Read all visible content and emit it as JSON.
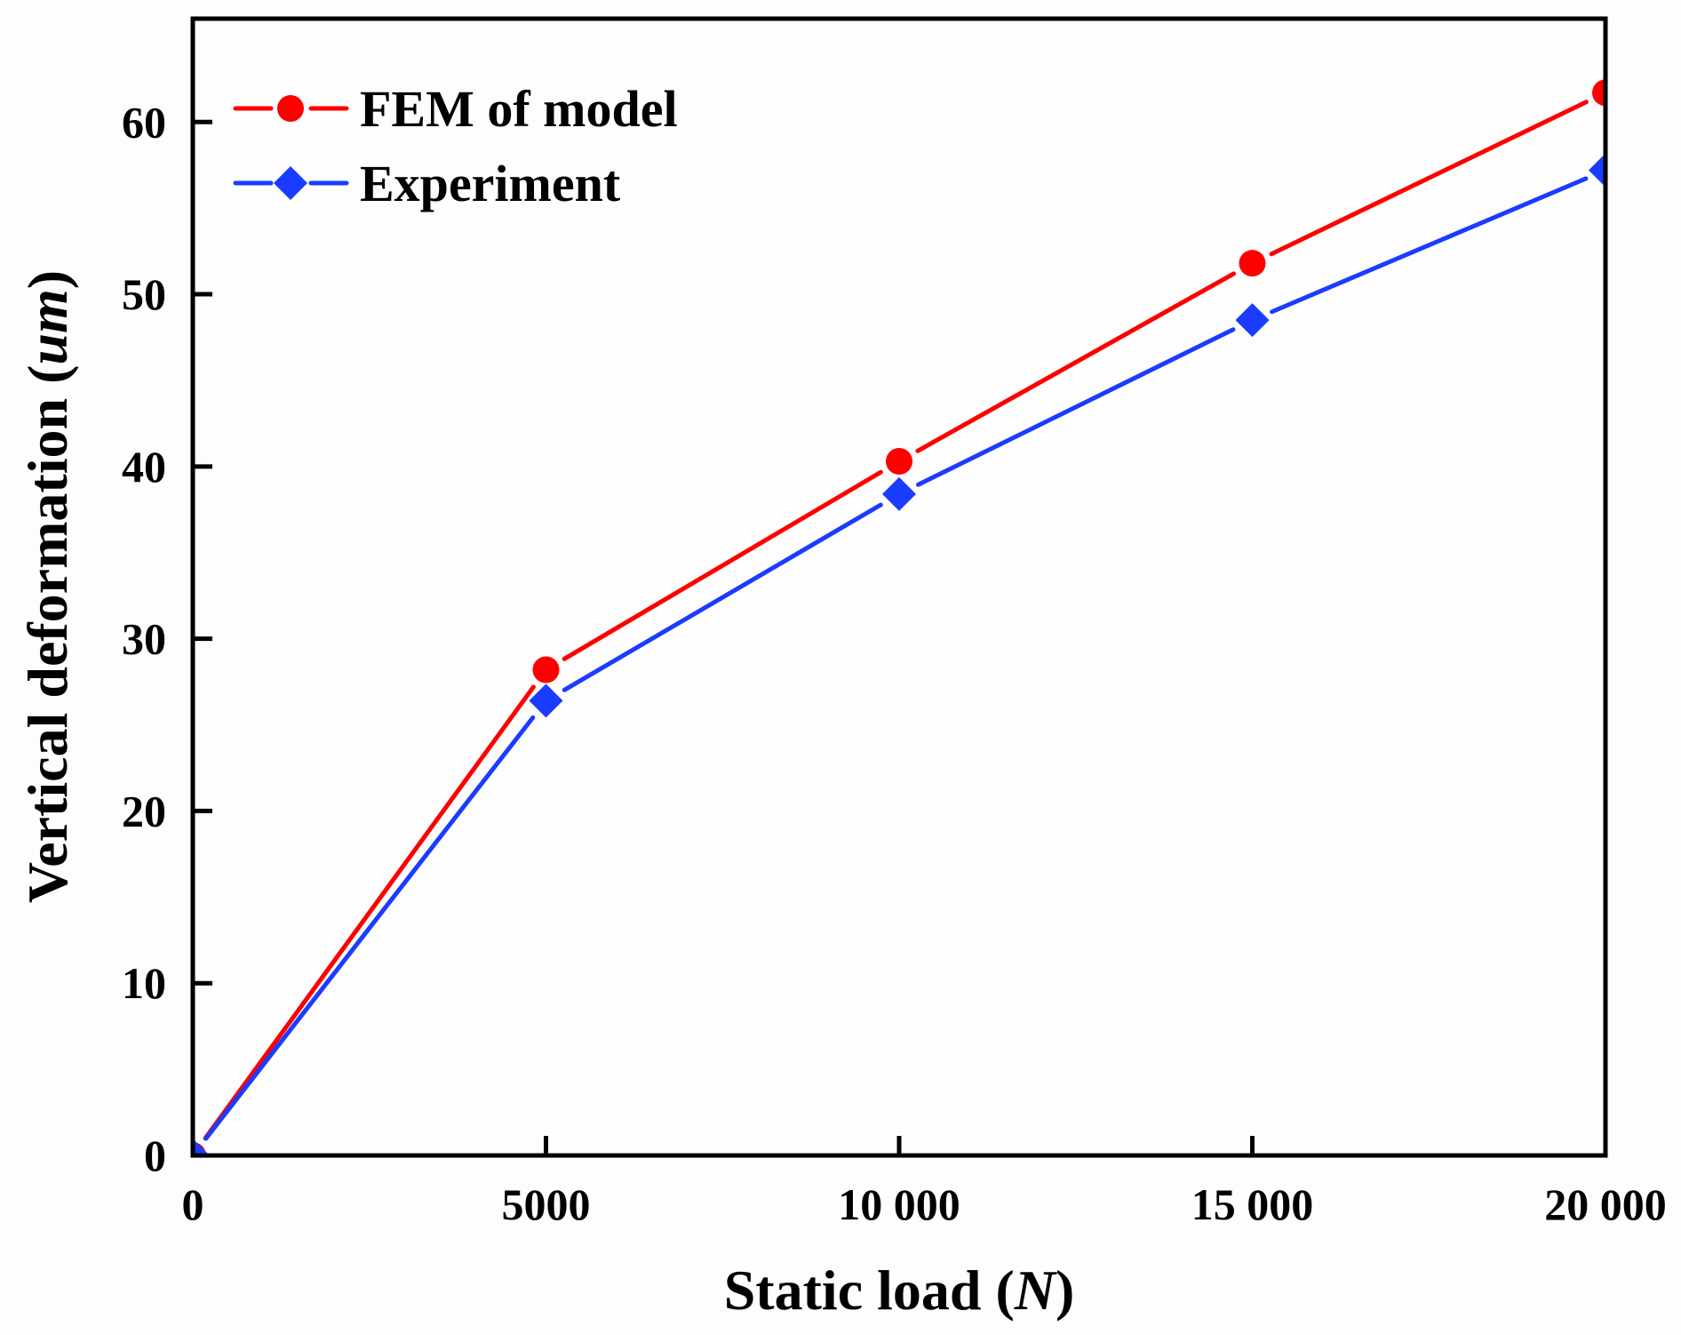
{
  "chart_data": {
    "type": "line",
    "title": "",
    "xlabel": "Static load",
    "xlabel_unit": "N",
    "ylabel": "Vertical deformation",
    "ylabel_unit": "um",
    "x": [
      0,
      5000,
      10000,
      15000,
      20000
    ],
    "xlim": [
      0,
      20000
    ],
    "ylim": [
      0,
      66
    ],
    "xticks": [
      0,
      5000,
      10000,
      15000,
      20000
    ],
    "xtick_labels": [
      "0",
      "5000",
      "10 000",
      "15 000",
      "20 000"
    ],
    "yticks": [
      0,
      10,
      20,
      30,
      40,
      50,
      60
    ],
    "ytick_labels": [
      "0",
      "10",
      "20",
      "30",
      "40",
      "50",
      "60"
    ],
    "grid": false,
    "legend_position": "top-left",
    "series": [
      {
        "name": "FEM of model",
        "color": "#ff0000",
        "marker": "circle",
        "values": [
          0,
          28.2,
          40.3,
          51.8,
          61.7
        ]
      },
      {
        "name": "Experiment",
        "color": "#1a3cff",
        "marker": "diamond",
        "values": [
          0,
          26.4,
          38.4,
          48.5,
          57.2
        ]
      }
    ]
  }
}
